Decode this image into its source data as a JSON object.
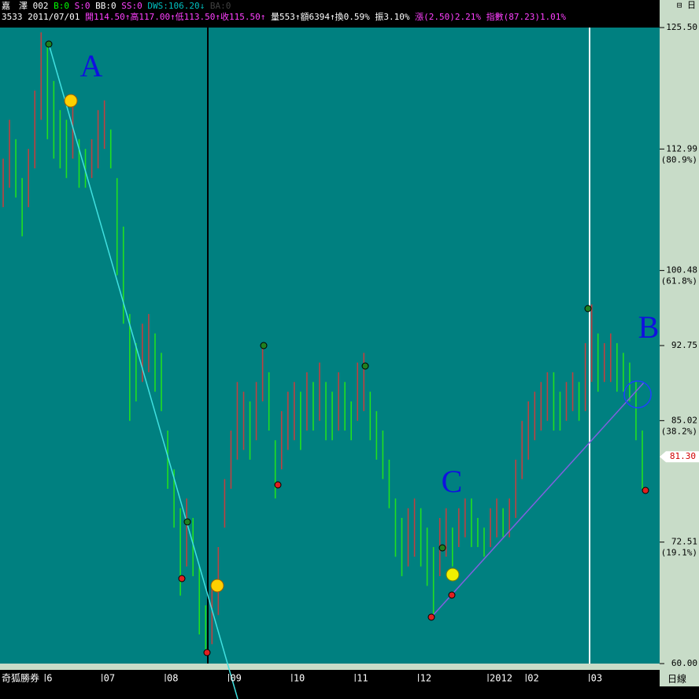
{
  "chart_data": {
    "type": "candlestick",
    "header_line1": [
      {
        "text": "嘉　澤 002",
        "color": "#ffffff"
      },
      {
        "text": "B:0",
        "color": "#00ff00"
      },
      {
        "text": "S:0",
        "color": "#ff40ff"
      },
      {
        "text": "BB:0",
        "color": "#ffffff"
      },
      {
        "text": "SS:0",
        "color": "#ff40ff"
      },
      {
        "text": "DWS:106.20↓",
        "color": "#00c0c0"
      },
      {
        "text": "BA:0",
        "color": "#404040"
      }
    ],
    "header_line2": [
      {
        "text": "3533 2011/07/01",
        "color": "#ffffff"
      },
      {
        "text": "開114.50↑高117.00↑低113.50↑收115.50↑",
        "color": "#ff40ff"
      },
      {
        "text": "量553↑額6394↑換0.59% 振3.10%",
        "color": "#ffffff"
      },
      {
        "text": "漲(2.50)2.21% 指數(87.23)1.01%",
        "color": "#ff40ff"
      }
    ],
    "categories": [
      null,
      null,
      null,
      null,
      null,
      null,
      null,
      "6",
      null,
      null,
      null,
      null,
      null,
      null,
      null,
      null,
      "07",
      null,
      null,
      null,
      null,
      null,
      null,
      null,
      null,
      null,
      "08",
      null,
      null,
      null,
      null,
      null,
      null,
      null,
      null,
      null,
      "09",
      null,
      null,
      null,
      null,
      null,
      null,
      null,
      null,
      null,
      "10",
      null,
      null,
      null,
      null,
      null,
      null,
      null,
      null,
      null,
      "11",
      null,
      null,
      null,
      null,
      null,
      null,
      null,
      null,
      null,
      "12",
      null,
      null,
      null,
      null,
      null,
      null,
      null,
      null,
      null,
      null,
      "2012",
      null,
      null,
      null,
      null,
      null,
      "02",
      null,
      null,
      null,
      null,
      null,
      null,
      null,
      null,
      null,
      "03",
      null,
      null,
      null,
      null,
      null,
      null,
      null,
      null
    ],
    "highs": [
      112,
      116,
      114,
      110,
      113,
      119,
      125,
      124,
      120,
      117,
      116,
      118,
      114,
      113,
      114,
      117,
      118,
      115,
      110,
      105,
      96,
      93,
      95,
      96,
      94,
      92,
      84,
      80,
      76,
      77,
      75,
      70,
      66,
      68,
      72,
      79,
      84,
      89,
      88,
      87,
      89,
      93,
      90,
      83,
      86,
      88,
      89,
      88,
      90,
      89,
      91,
      89,
      88,
      90,
      89,
      87,
      91,
      92,
      88,
      86,
      84,
      81,
      77,
      75,
      76,
      77,
      76,
      74,
      72,
      75,
      76,
      74,
      76,
      77,
      77,
      75,
      74,
      76,
      77,
      76,
      77,
      81,
      85,
      87,
      88,
      89,
      90,
      90,
      88,
      89,
      90,
      89,
      93,
      97,
      94,
      93,
      94,
      93,
      92,
      91,
      89,
      84
    ],
    "lows": [
      107,
      109,
      108,
      104,
      107,
      111,
      116,
      114,
      112,
      111,
      110,
      112,
      109,
      109,
      110,
      111,
      113,
      111,
      100,
      95,
      85,
      87,
      89,
      90,
      88,
      86,
      78,
      74,
      67,
      70,
      69,
      63,
      61,
      62,
      65,
      74,
      78,
      81,
      82,
      81,
      83,
      87,
      84,
      77,
      80,
      82,
      83,
      82,
      84,
      84,
      85,
      83,
      83,
      84,
      84,
      83,
      85,
      86,
      83,
      81,
      79,
      76,
      71,
      69,
      70,
      71,
      70,
      68,
      65,
      69,
      71,
      70,
      72,
      73,
      72,
      72,
      71,
      72,
      73,
      73,
      73,
      75,
      79,
      81,
      83,
      84,
      85,
      84,
      84,
      85,
      86,
      85,
      86,
      89,
      88,
      89,
      89,
      88,
      88,
      87,
      83,
      78
    ],
    "up_color": "#c04040",
    "down_color": "#20e020",
    "ylim": [
      60,
      125.5
    ],
    "yticks": [
      {
        "value": 60,
        "label": "60.00"
      },
      {
        "value": 72.51,
        "label": "72.51"
      },
      {
        "value": 85.02,
        "label": "85.02"
      },
      {
        "value": 92.75,
        "label": "92.75"
      },
      {
        "value": 100.48,
        "label": "100.48"
      },
      {
        "value": 112.99,
        "label": "112.99"
      },
      {
        "value": 125.5,
        "label": "125.50"
      }
    ],
    "ratio_labels": [
      {
        "value": 72.51,
        "label": "(19.1%)"
      },
      {
        "value": 85.02,
        "label": "(38.2%)"
      },
      {
        "value": 100.48,
        "label": "(61.8%)"
      },
      {
        "value": 112.99,
        "label": "(80.9%)"
      }
    ],
    "last_price": {
      "value": 81.3,
      "label": "81.30"
    },
    "annotations": [
      "A",
      "B",
      "C"
    ],
    "brand": "奇狐勝券",
    "period": "日線",
    "corner_icons": "⊟ 日"
  }
}
